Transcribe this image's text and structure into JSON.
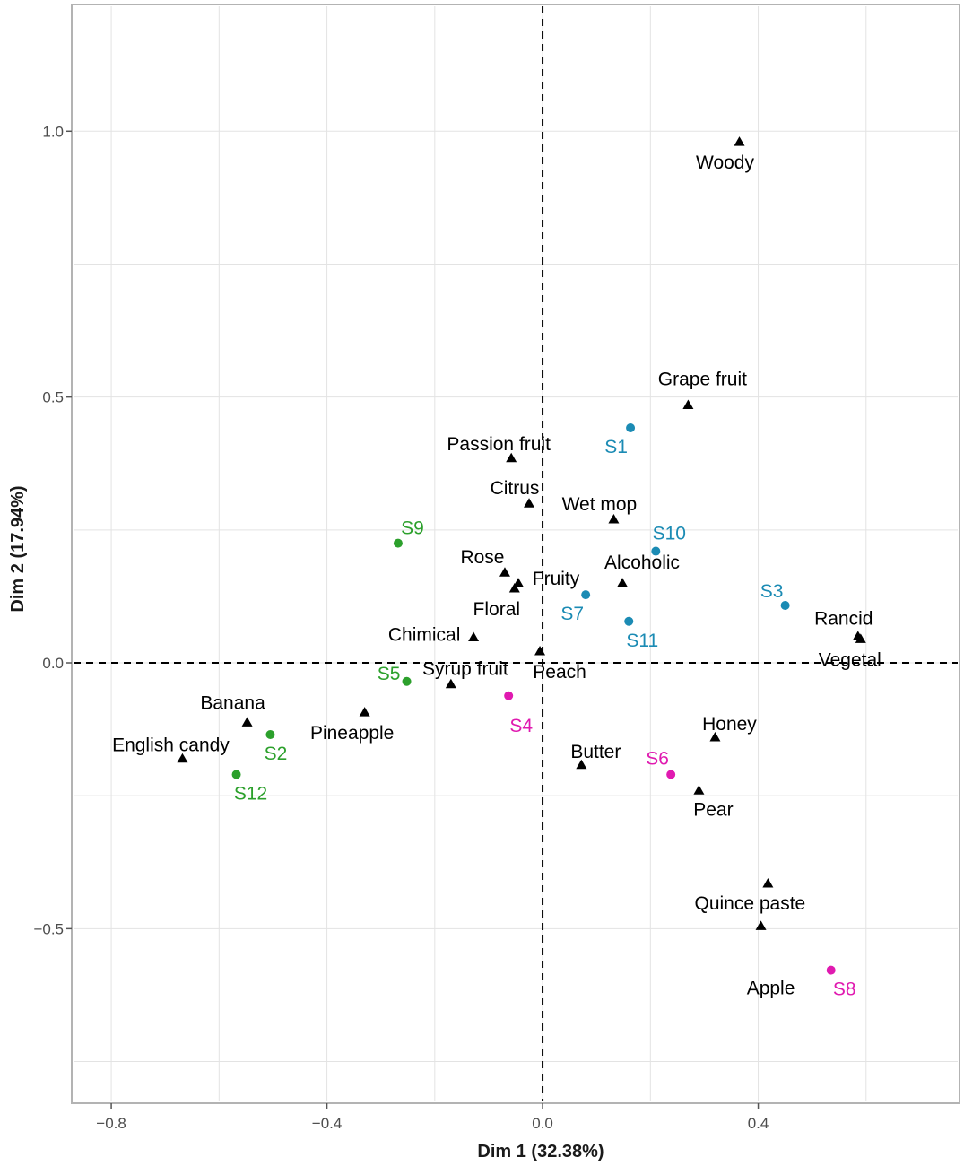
{
  "chart_data": {
    "type": "scatter",
    "title": "",
    "xlabel": "Dim 1 (32.38%)",
    "ylabel": "Dim 2 (17.94%)",
    "xlim": [
      -0.87,
      0.77
    ],
    "ylim": [
      -0.825,
      1.235
    ],
    "x_ticks": [
      -0.8,
      -0.4,
      0.0,
      0.4
    ],
    "y_ticks": [
      -0.5,
      0.0,
      0.5,
      1.0
    ],
    "x_tick_labels": [
      "−0.8",
      "−0.4",
      "0.0",
      "0.4"
    ],
    "y_tick_labels": [
      "−0.5",
      "0.0",
      "0.5",
      "1.0"
    ],
    "grid": true,
    "reference_lines": {
      "x": 0,
      "y": 0,
      "style": "dashed"
    },
    "colors": {
      "attribute": "#000000",
      "group_green": "#2ca02c",
      "group_blue": "#1b8bb4",
      "group_magenta": "#e01ab0"
    },
    "series": [
      {
        "name": "attributes",
        "marker": "triangle",
        "color_key": "attribute",
        "points": [
          {
            "label": "Woody",
            "x": 0.365,
            "y": 0.98
          },
          {
            "label": "Grape fruit",
            "x": 0.27,
            "y": 0.485
          },
          {
            "label": "Passion fruit",
            "x": -0.058,
            "y": 0.385
          },
          {
            "label": "Citrus",
            "x": -0.025,
            "y": 0.3
          },
          {
            "label": "Wet mop",
            "x": 0.132,
            "y": 0.27
          },
          {
            "label": "Rose",
            "x": -0.07,
            "y": 0.17
          },
          {
            "label": "Fruity",
            "x": -0.045,
            "y": 0.15
          },
          {
            "label": "Floral",
            "x": -0.052,
            "y": 0.14
          },
          {
            "label": "Alcoholic",
            "x": 0.148,
            "y": 0.15
          },
          {
            "label": "Rancid",
            "x": 0.585,
            "y": 0.05
          },
          {
            "label": "Vegetal",
            "x": 0.59,
            "y": 0.045
          },
          {
            "label": "Chimical",
            "x": -0.128,
            "y": 0.048
          },
          {
            "label": "Peach",
            "x": -0.005,
            "y": 0.022
          },
          {
            "label": "Syrup fruit",
            "x": -0.17,
            "y": -0.04
          },
          {
            "label": "Banana",
            "x": -0.548,
            "y": -0.112
          },
          {
            "label": "Pineapple",
            "x": -0.33,
            "y": -0.093
          },
          {
            "label": "English candy",
            "x": -0.668,
            "y": -0.18
          },
          {
            "label": "Honey",
            "x": 0.32,
            "y": -0.14
          },
          {
            "label": "Butter",
            "x": 0.072,
            "y": -0.192
          },
          {
            "label": "Pear",
            "x": 0.29,
            "y": -0.24
          },
          {
            "label": "Quince paste",
            "x": 0.418,
            "y": -0.415
          },
          {
            "label": "Apple",
            "x": 0.405,
            "y": -0.495
          }
        ]
      },
      {
        "name": "green samples",
        "marker": "circle",
        "color_key": "group_green",
        "points": [
          {
            "label": "S9",
            "x": -0.268,
            "y": 0.225
          },
          {
            "label": "S5",
            "x": -0.252,
            "y": -0.035
          },
          {
            "label": "S2",
            "x": -0.505,
            "y": -0.135
          },
          {
            "label": "S12",
            "x": -0.568,
            "y": -0.21
          }
        ]
      },
      {
        "name": "blue samples",
        "marker": "circle",
        "color_key": "group_blue",
        "points": [
          {
            "label": "S1",
            "x": 0.163,
            "y": 0.442
          },
          {
            "label": "S10",
            "x": 0.21,
            "y": 0.21
          },
          {
            "label": "S3",
            "x": 0.45,
            "y": 0.108
          },
          {
            "label": "S7",
            "x": 0.08,
            "y": 0.128
          },
          {
            "label": "S11",
            "x": 0.16,
            "y": 0.078
          }
        ]
      },
      {
        "name": "magenta samples",
        "marker": "circle",
        "color_key": "group_magenta",
        "points": [
          {
            "label": "S4",
            "x": -0.063,
            "y": -0.062
          },
          {
            "label": "S6",
            "x": 0.238,
            "y": -0.21
          },
          {
            "label": "S8",
            "x": 0.535,
            "y": -0.578
          }
        ]
      }
    ]
  }
}
